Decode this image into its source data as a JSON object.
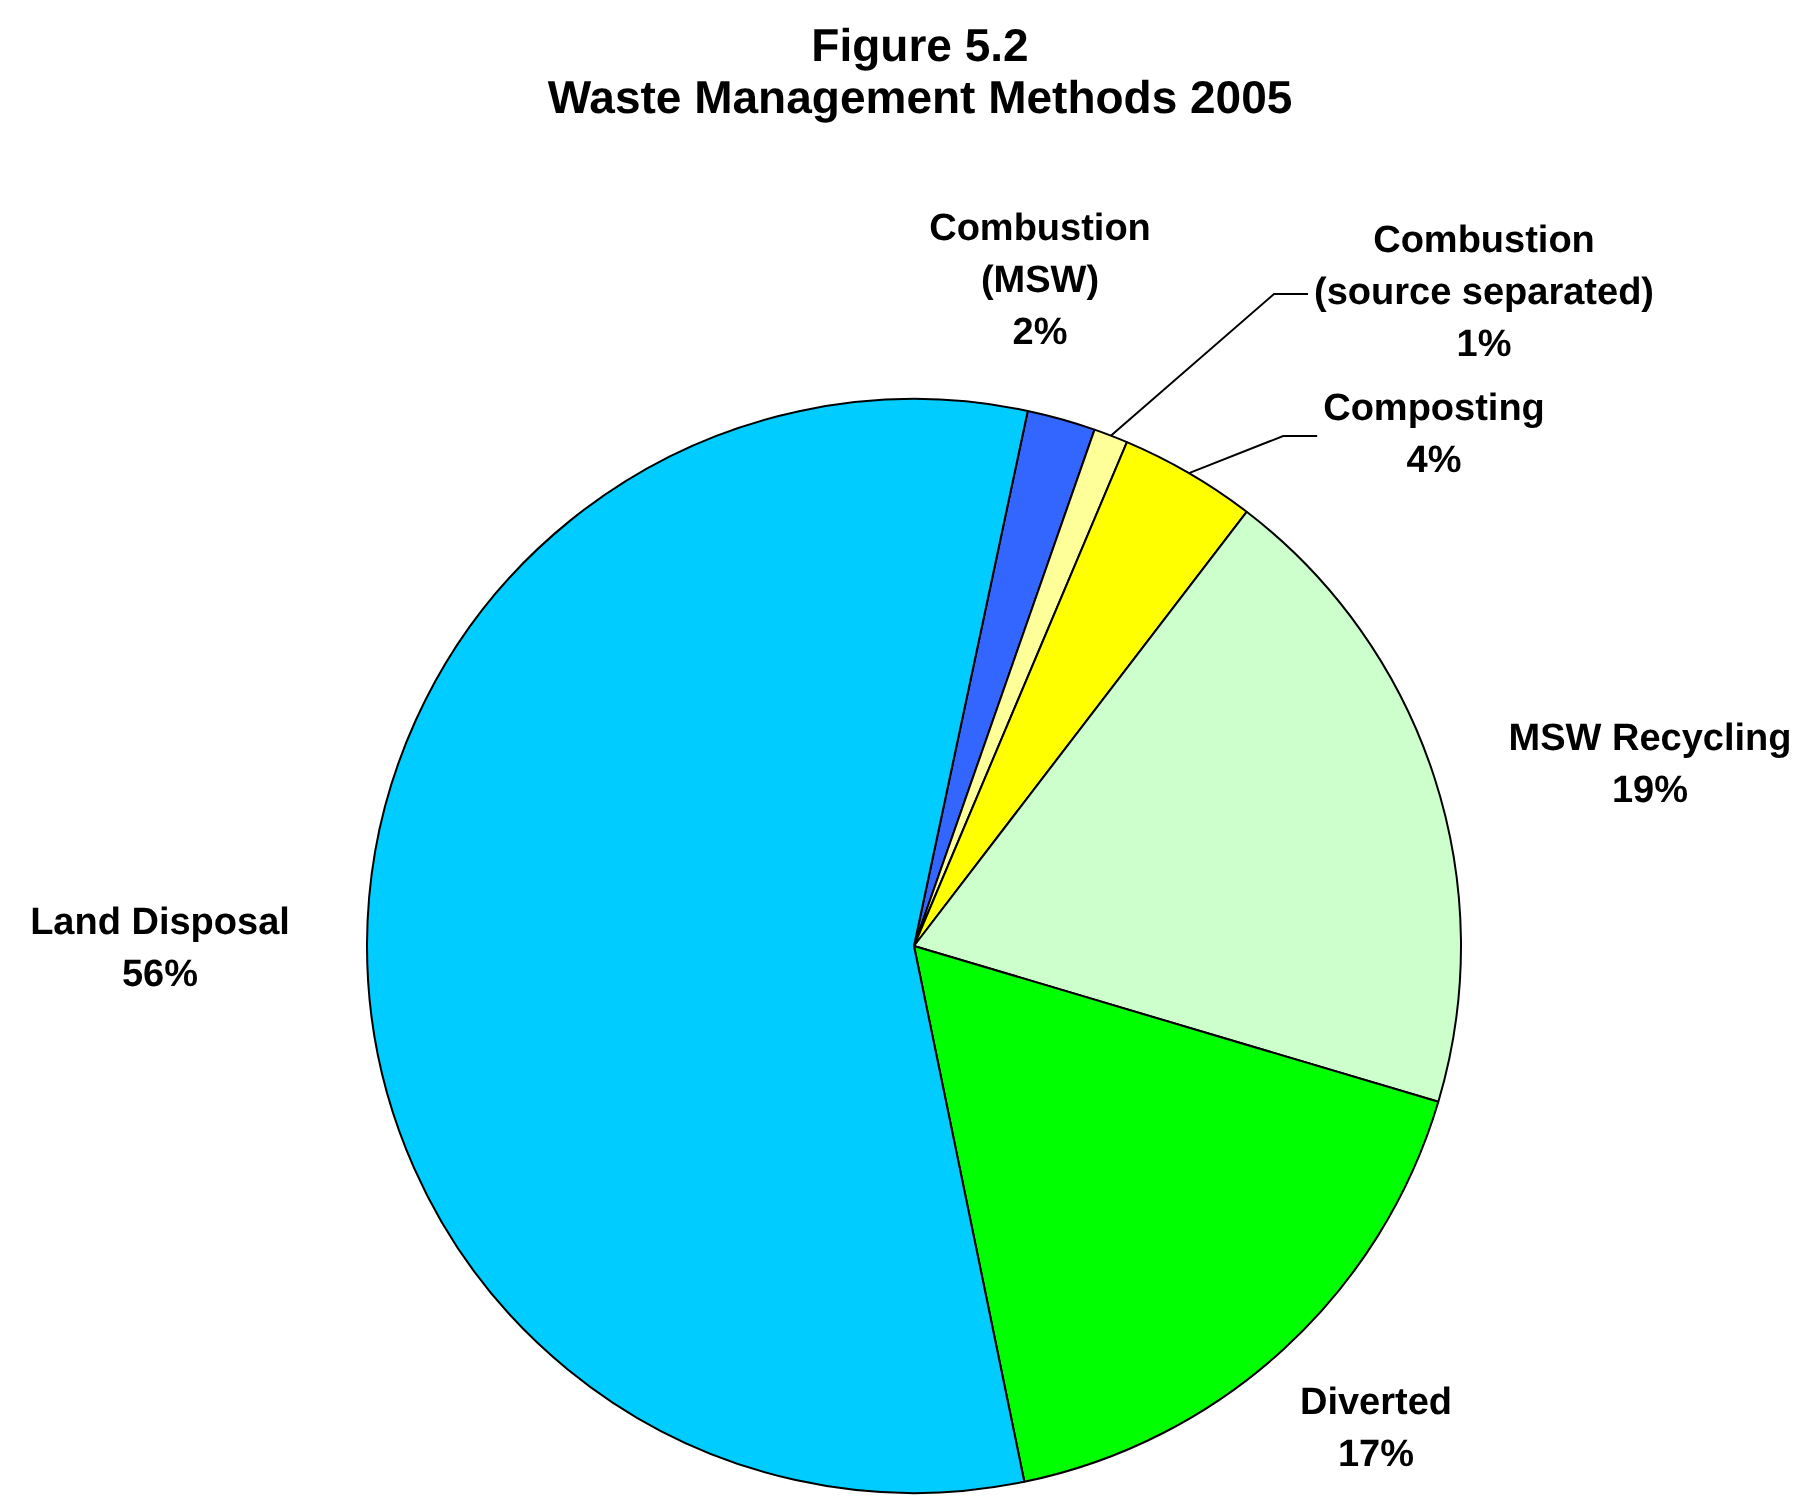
{
  "chart_data": {
    "type": "pie",
    "title": "Figure 5.2",
    "subtitle": "Waste Management Methods 2005",
    "categories": [
      "Combustion (MSW)",
      "Combustion (source separated)",
      "Composting",
      "MSW Recycling",
      "Diverted",
      "Land Disposal"
    ],
    "values": [
      2,
      1,
      4,
      19,
      17,
      56
    ],
    "value_labels": [
      "2%",
      "1%",
      "4%",
      "19%",
      "17%",
      "56%"
    ],
    "colors": [
      "#3366ff",
      "#ffff99",
      "#ffff00",
      "#ccffcc",
      "#00ff00",
      "#00ccff"
    ]
  }
}
